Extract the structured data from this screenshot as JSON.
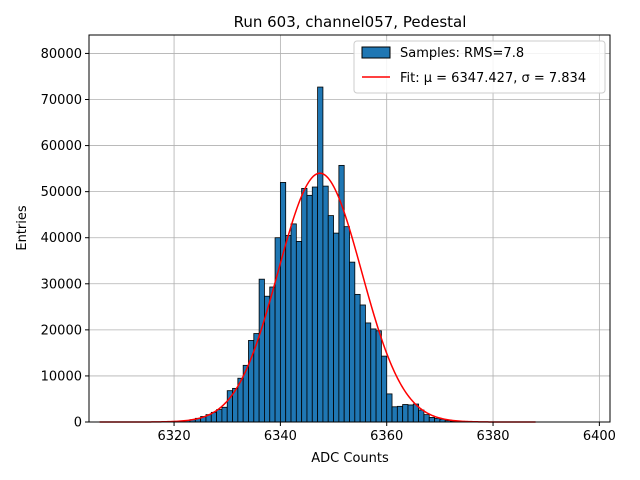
{
  "chart_data": {
    "type": "bar",
    "title": "Run 603, channel057, Pedestal",
    "xlabel": "ADC Counts",
    "ylabel": "Entries",
    "xlim": [
      6304,
      6402
    ],
    "ylim": [
      0,
      84000
    ],
    "x_ticks": [
      6320,
      6340,
      6360,
      6380,
      6400
    ],
    "y_ticks": [
      0,
      10000,
      20000,
      30000,
      40000,
      50000,
      60000,
      70000,
      80000
    ],
    "grid": true,
    "legend_position": "top-right",
    "colors": {
      "bar": "#1f77b4",
      "bar_edge": "#000000",
      "fit": "#ff0000",
      "grid": "#b0b0b0"
    },
    "histogram": {
      "name": "Samples: RMS=7.8",
      "bin_width": 1,
      "bin_starts": [
        6322,
        6323,
        6324,
        6325,
        6326,
        6327,
        6328,
        6329,
        6330,
        6331,
        6332,
        6333,
        6334,
        6335,
        6336,
        6337,
        6338,
        6339,
        6340,
        6341,
        6342,
        6343,
        6344,
        6345,
        6346,
        6347,
        6348,
        6349,
        6350,
        6351,
        6352,
        6353,
        6354,
        6355,
        6356,
        6357,
        6358,
        6359,
        6360,
        6361,
        6362,
        6363,
        6364,
        6365,
        6366,
        6367,
        6368,
        6369,
        6370,
        6371,
        6372,
        6373
      ],
      "values": [
        300,
        500,
        800,
        1200,
        1600,
        2100,
        2700,
        3200,
        6800,
        7300,
        9500,
        12300,
        17700,
        19200,
        31000,
        27300,
        29300,
        40000,
        52000,
        40500,
        43000,
        39200,
        50700,
        49200,
        51000,
        72700,
        51200,
        44800,
        41000,
        55700,
        42400,
        34700,
        27700,
        25400,
        21500,
        20200,
        19800,
        14300,
        6100,
        3300,
        3400,
        3800,
        3700,
        3900,
        2600,
        1600,
        1000,
        800,
        600,
        300,
        200,
        100
      ]
    },
    "fit": {
      "name": "Fit: μ = 6347.427, σ = 7.834",
      "mu": 6347.427,
      "sigma": 7.834,
      "amplitude": 54000,
      "x_range": [
        6306,
        6388
      ]
    }
  }
}
